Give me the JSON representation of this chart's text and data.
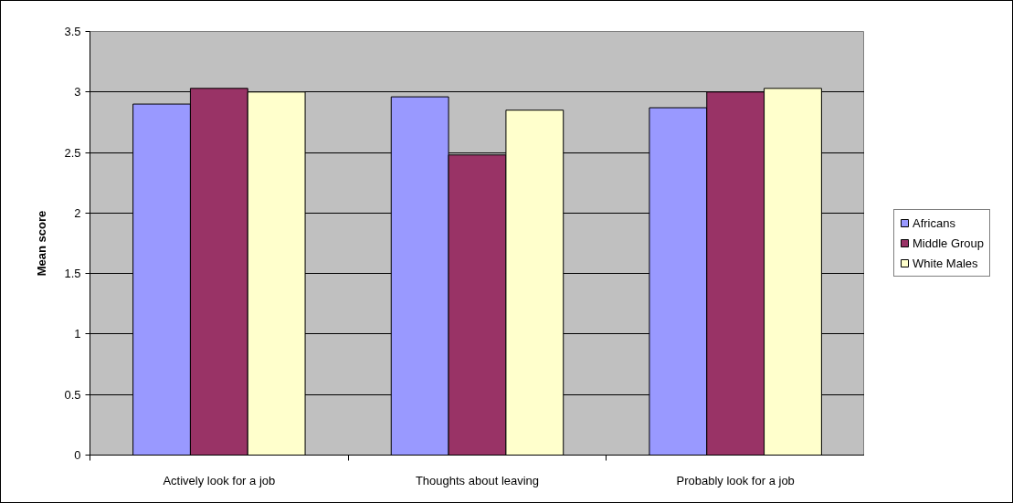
{
  "chart_data": {
    "type": "bar",
    "ylabel": "Mean score",
    "categories": [
      "Actively look for a job",
      "Thoughts about leaving",
      "Probably look for a job"
    ],
    "series": [
      {
        "name": "Africans",
        "color": "#9999ff",
        "values": [
          2.9,
          2.96,
          2.87
        ]
      },
      {
        "name": "Middle Group",
        "color": "#993366",
        "values": [
          3.03,
          2.48,
          3.0
        ]
      },
      {
        "name": "White Males",
        "color": "#ffffcc",
        "values": [
          3.0,
          2.85,
          3.03
        ]
      }
    ],
    "ylim": [
      0,
      3.5
    ],
    "yticks": [
      0,
      0.5,
      1,
      1.5,
      2,
      2.5,
      3,
      3.5
    ],
    "grid": "y",
    "legend": "right"
  }
}
